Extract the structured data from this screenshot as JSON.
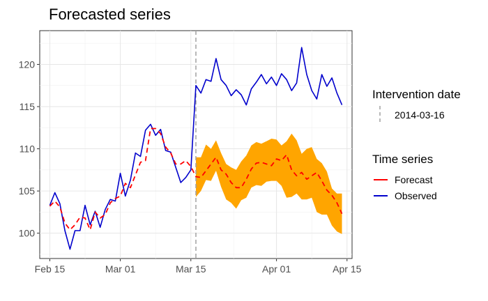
{
  "chart_data": {
    "type": "line",
    "title": "Forecasted series",
    "xlabel": "",
    "ylabel": "",
    "x_ticks": [
      "Feb 15",
      "Mar 01",
      "Mar 15",
      "Apr 01",
      "Apr 15"
    ],
    "y_ticks": [
      100,
      105,
      110,
      115,
      120
    ],
    "xlim": [
      "2014-02-13",
      "2014-04-16"
    ],
    "ylim": [
      97,
      124
    ],
    "grid": true,
    "legend_position": "right",
    "intervention": {
      "legend_title": "Intervention date",
      "date": "2014-03-16",
      "label": "2014-03-16",
      "color": "#a0a0a0"
    },
    "series_legend_title": "Time series",
    "x": [
      "2014-02-15",
      "2014-02-16",
      "2014-02-17",
      "2014-02-18",
      "2014-02-19",
      "2014-02-20",
      "2014-02-21",
      "2014-02-22",
      "2014-02-23",
      "2014-02-24",
      "2014-02-25",
      "2014-02-26",
      "2014-02-27",
      "2014-02-28",
      "2014-03-01",
      "2014-03-02",
      "2014-03-03",
      "2014-03-04",
      "2014-03-05",
      "2014-03-06",
      "2014-03-07",
      "2014-03-08",
      "2014-03-09",
      "2014-03-10",
      "2014-03-11",
      "2014-03-12",
      "2014-03-13",
      "2014-03-14",
      "2014-03-15",
      "2014-03-16",
      "2014-03-17",
      "2014-03-18",
      "2014-03-19",
      "2014-03-20",
      "2014-03-21",
      "2014-03-22",
      "2014-03-23",
      "2014-03-24",
      "2014-03-25",
      "2014-03-26",
      "2014-03-27",
      "2014-03-28",
      "2014-03-29",
      "2014-03-30",
      "2014-03-31",
      "2014-04-01",
      "2014-04-02",
      "2014-04-03",
      "2014-04-04",
      "2014-04-05",
      "2014-04-06",
      "2014-04-07",
      "2014-04-08",
      "2014-04-09",
      "2014-04-10",
      "2014-04-11",
      "2014-04-12",
      "2014-04-13",
      "2014-04-14"
    ],
    "series": [
      {
        "name": "Observed",
        "color": "#0000cc",
        "values": [
          103.3,
          104.8,
          103.5,
          100.3,
          98.1,
          100.3,
          100.3,
          103.3,
          101.0,
          102.6,
          100.7,
          102.8,
          104.0,
          103.8,
          107.1,
          104.4,
          106.3,
          109.5,
          109.1,
          112.2,
          112.9,
          111.6,
          112.3,
          109.8,
          109.6,
          107.8,
          106.0,
          106.6,
          107.5,
          117.5,
          116.6,
          118.2,
          118.0,
          120.7,
          118.2,
          117.5,
          116.3,
          117.0,
          116.4,
          115.2,
          117.1,
          117.9,
          118.8,
          117.7,
          118.5,
          117.5,
          118.9,
          118.2,
          116.9,
          117.8,
          122.0,
          118.8,
          116.9,
          115.9,
          118.8,
          117.4,
          118.4,
          116.6,
          115.2
        ]
      },
      {
        "name": "Forecast",
        "color": "#ff0000",
        "x_start": "2014-02-15",
        "values": [
          103.2,
          103.8,
          103.1,
          101.2,
          100.4,
          101.0,
          101.9,
          101.8,
          100.4,
          102.5,
          101.8,
          102.2,
          103.6,
          104.1,
          104.4,
          105.9,
          105.4,
          106.9,
          108.4,
          108.6,
          112.4,
          112.4,
          111.8,
          110.2,
          109.5,
          108.2,
          108.2,
          108.6,
          107.9,
          106.7,
          106.6,
          107.4,
          108.2,
          109.0,
          107.5,
          107.0,
          106.0,
          105.4,
          105.4,
          106.4,
          107.6,
          108.3,
          108.4,
          108.2,
          108.0,
          108.8,
          108.6,
          109.3,
          107.5,
          106.8,
          107.2,
          106.4,
          106.8,
          107.2,
          106.2,
          105.1,
          104.5,
          103.6,
          102.3
        ]
      }
    ],
    "forecast_band": {
      "color": "#ffa500",
      "x_start": "2014-03-16",
      "lower": [
        104.3,
        105.0,
        106.3,
        106.2,
        107.4,
        105.5,
        104.0,
        103.6,
        102.9,
        103.9,
        104.2,
        105.4,
        105.7,
        105.6,
        106.1,
        106.2,
        106.2,
        105.6,
        104.2,
        104.3,
        104.7,
        104.0,
        104.0,
        104.2,
        102.5,
        102.2,
        102.2,
        100.9,
        100.2,
        99.9
      ],
      "upper": [
        109.0,
        109.0,
        110.5,
        110.0,
        111.0,
        109.5,
        108.2,
        107.8,
        107.5,
        108.5,
        109.2,
        110.4,
        110.8,
        110.6,
        110.9,
        111.2,
        111.1,
        110.4,
        110.9,
        111.8,
        111.0,
        109.4,
        110.0,
        110.2,
        108.8,
        108.3,
        107.3,
        105.3,
        104.7,
        104.7
      ]
    }
  }
}
